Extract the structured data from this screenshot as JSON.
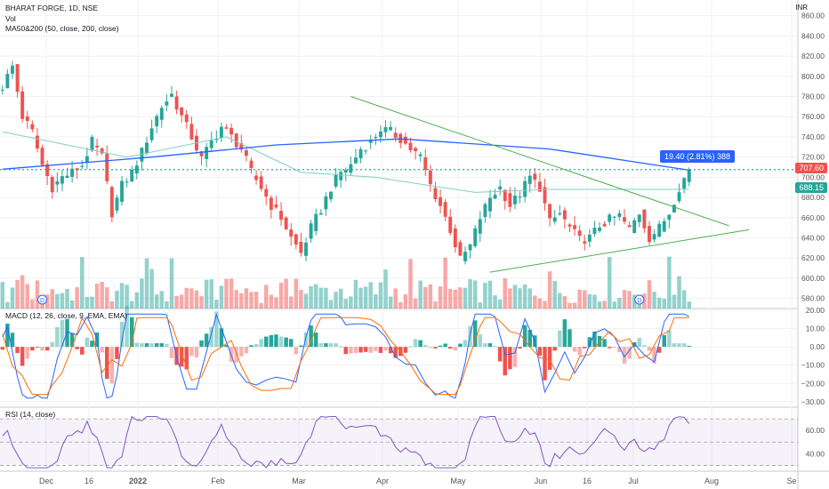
{
  "header": {
    "title": "BHARAT FORGE, 1D, NSE",
    "vol_label": "Vol",
    "ma_label": "MA50&200 (50, close, 200, close)",
    "currency": "INR"
  },
  "tooltip": {
    "text": "19.40 (2.81%) 388"
  },
  "price_labels": {
    "last": "707.60",
    "ma": "688.15"
  },
  "macd_label": "MACD (12, 26, close, 9, EMA, EMA)",
  "rsi_label": "RSI (14, close)",
  "colors": {
    "up": "#26a69a",
    "down": "#ef5350",
    "ma50": "#7ecfc3",
    "ma200": "#2962ff",
    "macd": "#2962ff",
    "signal": "#ff6d00",
    "rsi": "#7e57c2",
    "trend": "#4caf50"
  },
  "chart_data": [
    {
      "type": "candlestick",
      "title": "BHARAT FORGE, 1D, NSE",
      "y_ticks": [
        580,
        600,
        620,
        640,
        660,
        680,
        700,
        720,
        740,
        760,
        780,
        800,
        820,
        840,
        860
      ],
      "ylim": [
        570,
        865
      ],
      "x_ticks": [
        "Dec",
        "16",
        "2022",
        "Feb",
        "Mar",
        "Apr",
        "May",
        "Jun",
        "16",
        "Jul",
        "Aug",
        "Se"
      ],
      "close_path": [
        [
          0,
          790
        ],
        [
          2,
          810
        ],
        [
          4,
          760
        ],
        [
          6,
          745
        ],
        [
          8,
          712
        ],
        [
          10,
          690
        ],
        [
          12,
          700
        ],
        [
          14,
          705
        ],
        [
          16,
          712
        ],
        [
          18,
          735
        ],
        [
          20,
          720
        ],
        [
          22,
          665
        ],
        [
          24,
          692
        ],
        [
          26,
          705
        ],
        [
          28,
          725
        ],
        [
          30,
          750
        ],
        [
          32,
          770
        ],
        [
          34,
          782
        ],
        [
          36,
          760
        ],
        [
          38,
          740
        ],
        [
          40,
          718
        ],
        [
          42,
          735
        ],
        [
          44,
          750
        ],
        [
          46,
          740
        ],
        [
          48,
          728
        ],
        [
          50,
          705
        ],
        [
          52,
          690
        ],
        [
          54,
          672
        ],
        [
          56,
          660
        ],
        [
          58,
          640
        ],
        [
          60,
          625
        ],
        [
          62,
          650
        ],
        [
          64,
          668
        ],
        [
          66,
          690
        ],
        [
          68,
          705
        ],
        [
          70,
          712
        ],
        [
          72,
          728
        ],
        [
          74,
          735
        ],
        [
          76,
          748
        ],
        [
          78,
          745
        ],
        [
          80,
          738
        ],
        [
          82,
          728
        ],
        [
          84,
          720
        ],
        [
          86,
          692
        ],
        [
          88,
          672
        ],
        [
          90,
          648
        ],
        [
          92,
          618
        ],
        [
          94,
          632
        ],
        [
          96,
          660
        ],
        [
          98,
          680
        ],
        [
          100,
          690
        ],
        [
          102,
          672
        ],
        [
          104,
          684
        ],
        [
          106,
          700
        ],
        [
          108,
          690
        ],
        [
          110,
          655
        ],
        [
          112,
          664
        ],
        [
          114,
          650
        ],
        [
          116,
          638
        ],
        [
          118,
          640
        ],
        [
          120,
          652
        ],
        [
          122,
          658
        ],
        [
          124,
          662
        ],
        [
          126,
          648
        ],
        [
          128,
          665
        ],
        [
          130,
          640
        ],
        [
          132,
          650
        ],
        [
          134,
          665
        ],
        [
          136,
          690
        ],
        [
          138,
          707.6
        ]
      ],
      "volume_note": "Vol",
      "ma50": [
        [
          0,
          745
        ],
        [
          25,
          720
        ],
        [
          45,
          740
        ],
        [
          60,
          705
        ],
        [
          75,
          700
        ],
        [
          95,
          685
        ],
        [
          110,
          688
        ],
        [
          138,
          688
        ]
      ],
      "ma200": [
        [
          0,
          708
        ],
        [
          30,
          720
        ],
        [
          55,
          732
        ],
        [
          80,
          738
        ],
        [
          110,
          728
        ],
        [
          138,
          707
        ]
      ],
      "trendlines": [
        {
          "from": [
            70,
            780
          ],
          "to": [
            146,
            652
          ]
        },
        {
          "from": [
            98,
            606
          ],
          "to": [
            150,
            648
          ]
        }
      ],
      "last_price": 707.6,
      "ma_value": 688.15
    },
    {
      "type": "bar",
      "title": "MACD (12, 26, close, 9, EMA, EMA)",
      "y_ticks": [
        20,
        10,
        0,
        -10,
        -20,
        -30
      ],
      "ylim": [
        -33,
        21
      ]
    },
    {
      "type": "line",
      "title": "RSI (14, close)",
      "y_ticks": [
        60,
        40
      ],
      "ylim": [
        25,
        80
      ]
    }
  ]
}
